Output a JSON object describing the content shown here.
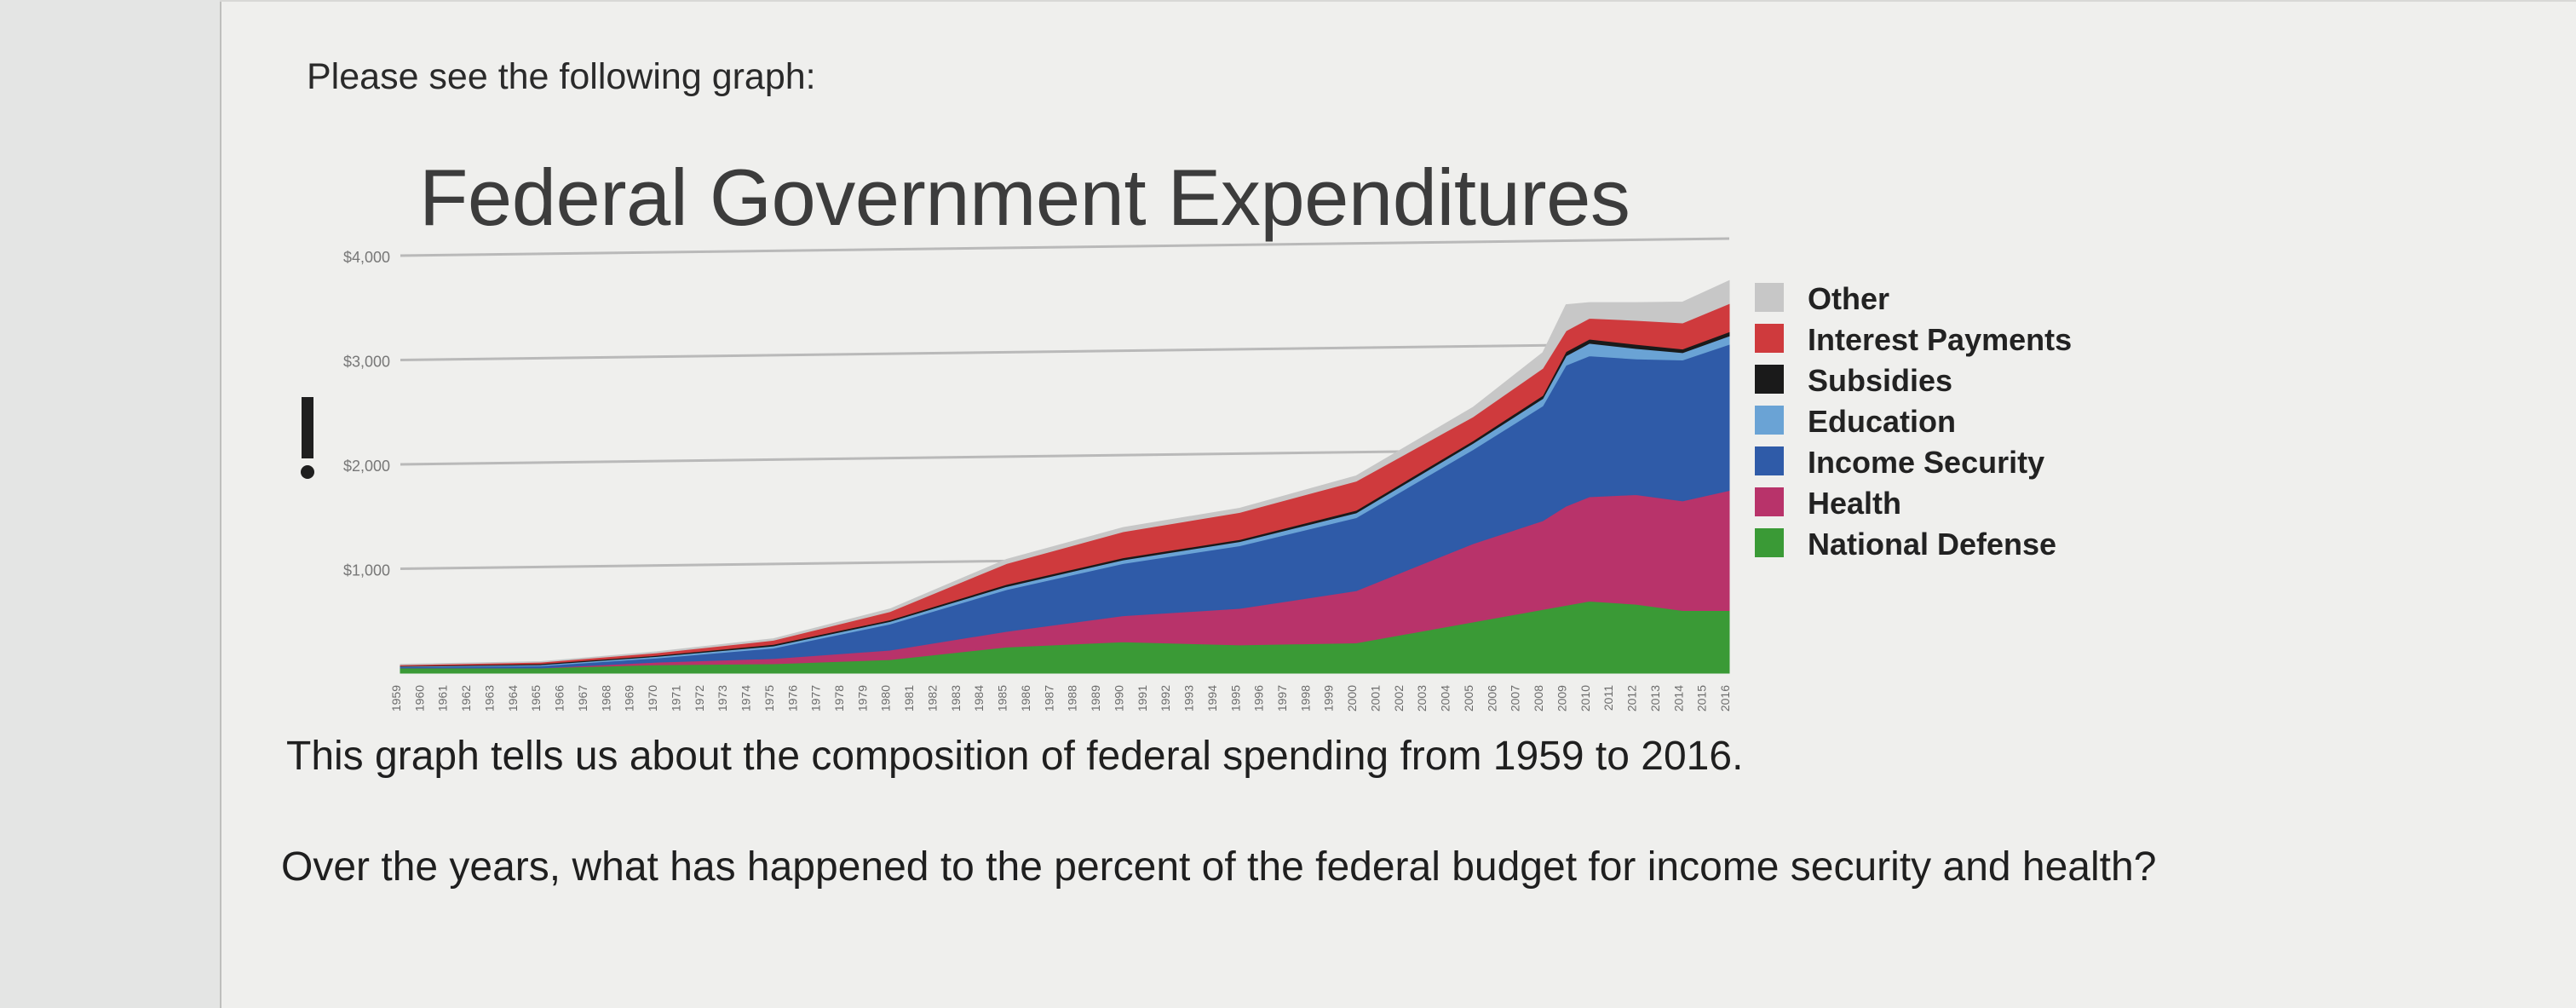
{
  "intro_text": "Please see the following graph:",
  "question": {
    "line1": "This graph tells us about the composition of federal spending from 1959 to 2016.",
    "line2": "Over the years, what has happened to the percent of the federal budget for income security and health?"
  },
  "chart_data": {
    "type": "area",
    "stacked": true,
    "title": "Federal Government Expenditures",
    "xlabel": "",
    "ylabel": "",
    "x": [
      1959,
      1965,
      1970,
      1975,
      1980,
      1985,
      1990,
      1995,
      2000,
      2005,
      2008,
      2009,
      2010,
      2012,
      2014,
      2016
    ],
    "ytick_labels": [
      "$1,000",
      "$2,000",
      "$3,000",
      "$4,000"
    ],
    "ylim": [
      0,
      4000
    ],
    "grid": true,
    "legend_position": "right",
    "series": [
      {
        "name": "National Defense",
        "color": "#3a9a36",
        "values": [
          50,
          50,
          80,
          90,
          130,
          250,
          300,
          270,
          290,
          490,
          610,
          650,
          690,
          660,
          600,
          600
        ]
      },
      {
        "name": "Health",
        "color": "#b8336a",
        "values": [
          0,
          0,
          25,
          50,
          90,
          150,
          250,
          350,
          500,
          750,
          850,
          950,
          1000,
          1050,
          1050,
          1150
        ]
      },
      {
        "name": "Income Security",
        "color": "#2f5ba8",
        "values": [
          10,
          20,
          40,
          100,
          250,
          400,
          500,
          600,
          700,
          900,
          1100,
          1350,
          1350,
          1300,
          1350,
          1400
        ]
      },
      {
        "name": "Education",
        "color": "#6aa3d5",
        "values": [
          5,
          10,
          15,
          20,
          25,
          30,
          35,
          40,
          45,
          60,
          70,
          90,
          120,
          100,
          70,
          80
        ]
      },
      {
        "name": "Subsidies",
        "color": "#1a1a1a",
        "values": [
          5,
          10,
          10,
          15,
          15,
          20,
          20,
          20,
          25,
          25,
          30,
          40,
          40,
          40,
          35,
          40
        ]
      },
      {
        "name": "Interest Payments",
        "color": "#cf3a3d",
        "values": [
          10,
          15,
          25,
          40,
          80,
          200,
          250,
          260,
          280,
          230,
          260,
          200,
          200,
          230,
          250,
          270
        ]
      },
      {
        "name": "Other",
        "color": "#c7c7c7",
        "values": [
          5,
          5,
          10,
          15,
          25,
          40,
          40,
          40,
          50,
          90,
          150,
          250,
          150,
          170,
          200,
          220
        ]
      }
    ]
  },
  "marker": {
    "label": "!"
  }
}
